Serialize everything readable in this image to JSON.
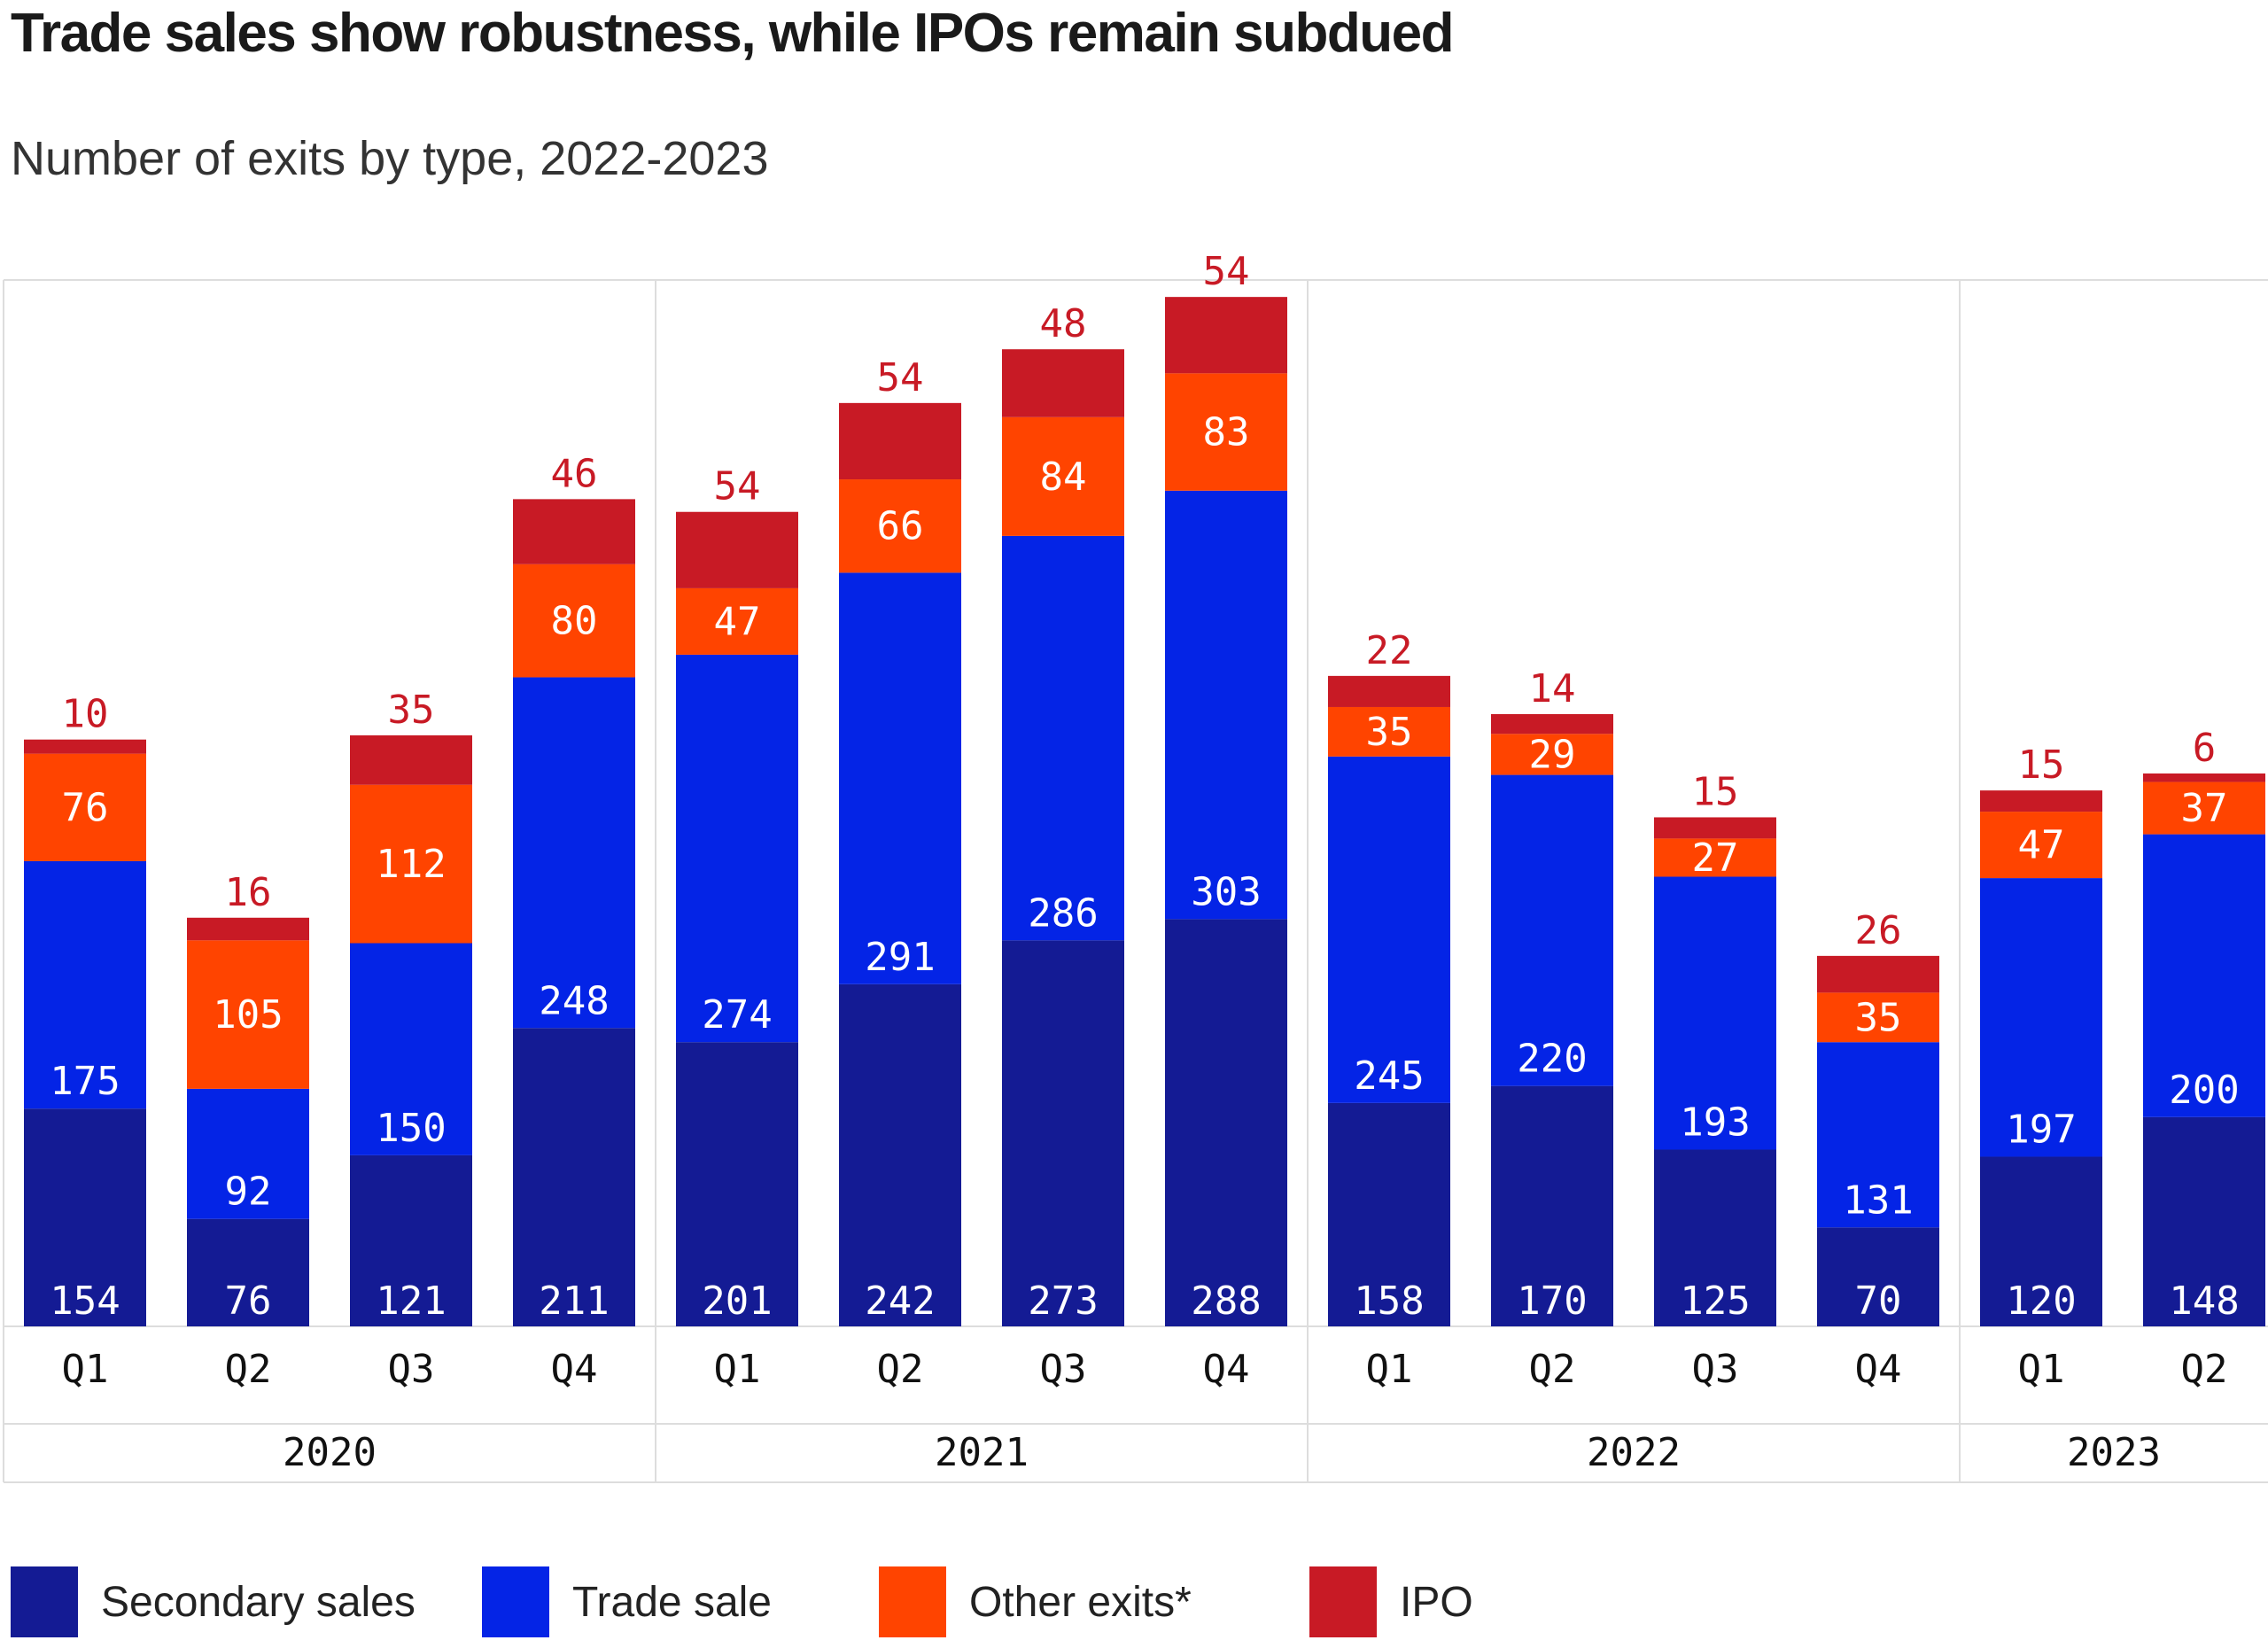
{
  "title": "Trade sales show robustness, while IPOs remain subdued",
  "subtitle": "Number of exits by type, 2022-2023",
  "colors": {
    "Secondary sales": "#141b94",
    "Trade sale": "#0424e6",
    "Other exits*": "#ff4400",
    "IPO": "#c81a25",
    "grid": "#dddddd",
    "ipo_label": "#c81a25"
  },
  "chart_data": {
    "type": "bar",
    "stacked": true,
    "title": "Trade sales show robustness, while IPOs remain subdued",
    "subtitle": "Number of exits by type, 2022-2023",
    "categories": [
      "Q1",
      "Q2",
      "Q3",
      "Q4",
      "Q1",
      "Q2",
      "Q3",
      "Q4",
      "Q1",
      "Q2",
      "Q3",
      "Q4",
      "Q1",
      "Q2"
    ],
    "groups": [
      {
        "label": "2020",
        "count": 4
      },
      {
        "label": "2021",
        "count": 4
      },
      {
        "label": "2022",
        "count": 4
      },
      {
        "label": "2023",
        "count": 2
      }
    ],
    "series": [
      {
        "name": "Secondary sales",
        "values": [
          154,
          76,
          121,
          211,
          201,
          242,
          273,
          288,
          158,
          170,
          125,
          70,
          120,
          148
        ]
      },
      {
        "name": "Trade sale",
        "values": [
          175,
          92,
          150,
          248,
          274,
          291,
          286,
          303,
          245,
          220,
          193,
          131,
          197,
          200
        ]
      },
      {
        "name": "Other exits*",
        "values": [
          76,
          105,
          112,
          80,
          47,
          66,
          84,
          83,
          35,
          29,
          27,
          35,
          47,
          37
        ]
      },
      {
        "name": "IPO",
        "values": [
          10,
          16,
          35,
          46,
          54,
          54,
          48,
          54,
          22,
          14,
          15,
          26,
          15,
          6
        ]
      }
    ],
    "ylim": [
      0,
      740
    ],
    "legend": [
      "Secondary sales",
      "Trade sale",
      "Other exits*",
      "IPO"
    ],
    "legend_position": "bottom"
  }
}
